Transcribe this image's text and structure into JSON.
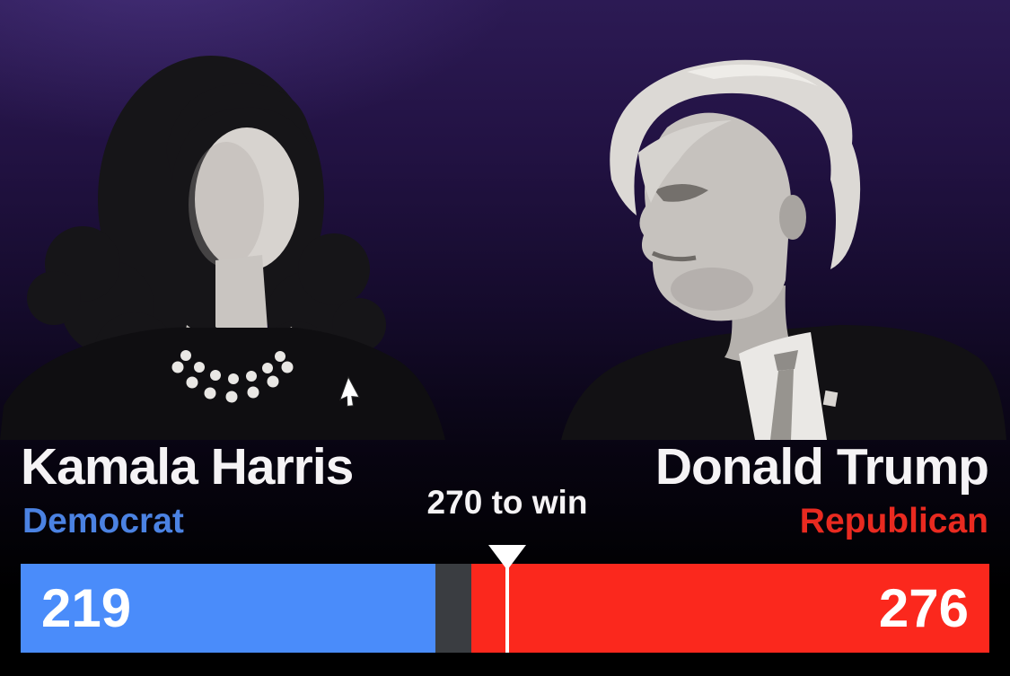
{
  "title_context": "US presidential election results graphic",
  "colors": {
    "background_top": "#2c1a54",
    "background_bottom": "#000000",
    "text_white": "#f5f3f5",
    "vote_number_white": "#ffffff",
    "marker_white": "#ffffff",
    "democrat_bar": "#4a8cfa",
    "democrat_label": "#4b82e2",
    "republican_bar": "#fb281d",
    "republican_label": "#e92a20",
    "bar_track_gray": "#3a3d41"
  },
  "icons": {
    "mouse_cursor": "arrow-pointer"
  },
  "photos": {
    "left_alt": "Kamala Harris black-and-white portrait",
    "right_alt": "Donald Trump black-and-white portrait"
  },
  "chart_data": {
    "type": "bar",
    "subtype": "head-to-head electoral votes tug bar",
    "series": [
      {
        "name": "Kamala Harris",
        "party": "Democrat",
        "value": 219,
        "bar_color": "#4a8cfa",
        "label_color": "#4b82e2",
        "fill_direction": "from-left"
      },
      {
        "name": "Donald Trump",
        "party": "Republican",
        "value": 276,
        "bar_color": "#fb281d",
        "label_color": "#e92a20",
        "fill_direction": "from-right"
      }
    ],
    "target": {
      "value": 270,
      "label": "270 to win"
    },
    "xlim": [
      0,
      538
    ],
    "track_color": "#3a3d41",
    "legend_position": "above-bar",
    "grid": false
  }
}
